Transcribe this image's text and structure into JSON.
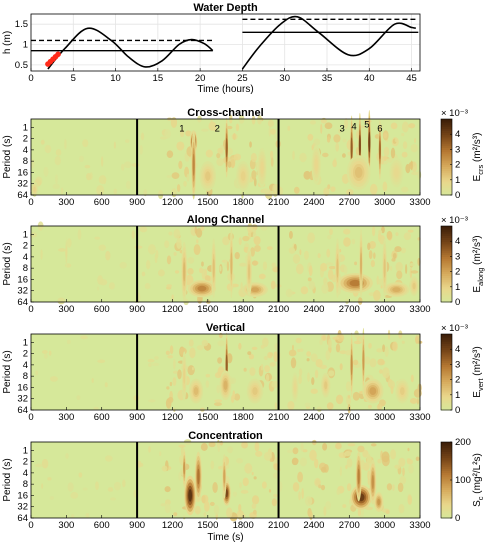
{
  "chart_data": [
    {
      "type": "line",
      "title": "Water Depth",
      "xlabel": "Time (hours)",
      "ylabel": "h (m)",
      "xlim": [
        0,
        46
      ],
      "ylim": [
        0.35,
        1.75
      ],
      "xticks": [
        "0",
        "5",
        "10",
        "15",
        "20",
        "25",
        "30",
        "35",
        "40",
        "45"
      ],
      "yticks": [
        "0.5",
        "1",
        "1.5"
      ],
      "grid": true,
      "series": [
        {
          "role": "water depth, deployment 1",
          "x": [
            2.0,
            4.0,
            6.7,
            9.5,
            11.5,
            13.5,
            15.5,
            17.5,
            19.0,
            20.5,
            21.5
          ],
          "y": [
            0.4,
            0.9,
            1.4,
            1.1,
            0.7,
            0.45,
            0.6,
            1.0,
            1.12,
            1.02,
            0.85
          ]
        },
        {
          "role": "water depth, deployment 2",
          "x": [
            25.0,
            27.0,
            29.5,
            31.5,
            34.0,
            37.5,
            40.0,
            43.0,
            45.0,
            45.5
          ],
          "y": [
            0.4,
            0.95,
            1.5,
            1.68,
            1.3,
            0.75,
            0.9,
            1.5,
            1.42,
            1.4
          ]
        },
        {
          "role": "solid horizontal reference, deployment 1",
          "x": [
            0,
            21.5
          ],
          "y": [
            0.85,
            0.85
          ]
        },
        {
          "role": "dashed horizontal reference, deployment 1",
          "x": [
            0,
            21.5
          ],
          "y": [
            1.1,
            1.1
          ]
        },
        {
          "role": "solid horizontal reference, deployment 2",
          "x": [
            25.0,
            45.8
          ],
          "y": [
            1.3,
            1.3
          ]
        },
        {
          "role": "dashed horizontal reference, deployment 2",
          "x": [
            25.0,
            45.8
          ],
          "y": [
            1.62,
            1.62
          ]
        },
        {
          "role": "red highlighted markers",
          "color": "#ff2a1a",
          "x": [
            2.0,
            2.3,
            2.6,
            2.9,
            3.2
          ],
          "y": [
            0.52,
            0.58,
            0.64,
            0.7,
            0.76
          ]
        }
      ]
    },
    {
      "type": "heatmap",
      "title": "Cross-channel",
      "ylabel": "Period (s)",
      "xlim": [
        0,
        3300
      ],
      "xticks": [
        "0",
        "300",
        "600",
        "900",
        "1200",
        "1500",
        "1800",
        "2100",
        "2400",
        "2700",
        "3000",
        "3300"
      ],
      "yticks": [
        "1",
        "2",
        "4",
        "8",
        "16",
        "32",
        "64"
      ],
      "vlines": [
        900,
        2100
      ],
      "colorbar": {
        "label": "E",
        "label_sub": "crs",
        "label_units": "(m²/s³)",
        "exponent": "× 10⁻³",
        "ticks": [
          "0",
          "1",
          "2",
          "3",
          "4"
        ],
        "max": 5
      },
      "annotations": [
        {
          "text": "1",
          "x": 1280,
          "y": 1
        },
        {
          "text": "2",
          "x": 1580,
          "y": 1
        },
        {
          "text": "3",
          "x": 2640,
          "y": 1
        },
        {
          "text": "4",
          "x": 2740,
          "y": 0.9
        },
        {
          "text": "5",
          "x": 2850,
          "y": 0.8
        },
        {
          "text": "6",
          "x": 2960,
          "y": 1
        }
      ],
      "features": [
        {
          "x": 1380,
          "period": 2.5,
          "value": 4.6,
          "sx": 30,
          "sy": 0.45
        },
        {
          "x": 1380,
          "period": 10,
          "value": 2.6,
          "sx": 20,
          "sy": 1.4
        },
        {
          "x": 1660,
          "period": 3.5,
          "value": 3.3,
          "sx": 14,
          "sy": 1.2
        },
        {
          "x": 1500,
          "period": 20,
          "value": 1.2,
          "sx": 70,
          "sy": 0.6
        },
        {
          "x": 1800,
          "period": 20,
          "value": 1.0,
          "sx": 60,
          "sy": 0.6
        },
        {
          "x": 1960,
          "period": 12,
          "value": 0.9,
          "sx": 40,
          "sy": 0.8
        },
        {
          "x": 2720,
          "period": 3.5,
          "value": 3.4,
          "sx": 12,
          "sy": 1.3
        },
        {
          "x": 2790,
          "period": 3.0,
          "value": 3.8,
          "sx": 12,
          "sy": 1.3
        },
        {
          "x": 2870,
          "period": 2.5,
          "value": 4.0,
          "sx": 12,
          "sy": 1.3
        },
        {
          "x": 2960,
          "period": 4,
          "value": 3.1,
          "sx": 12,
          "sy": 1.2
        },
        {
          "x": 2780,
          "period": 16,
          "value": 1.4,
          "sx": 100,
          "sy": 0.7
        },
        {
          "x": 2420,
          "period": 10,
          "value": 0.9,
          "sx": 40,
          "sy": 0.8
        },
        {
          "x": 3100,
          "period": 16,
          "value": 0.8,
          "sx": 60,
          "sy": 0.6
        },
        {
          "x": 30,
          "period": 45,
          "value": 1.0,
          "sx": 30,
          "sy": 0.3
        }
      ]
    },
    {
      "type": "heatmap",
      "title": "Along Channel",
      "ylabel": "Period (s)",
      "xlim": [
        0,
        3300
      ],
      "xticks": [
        "0",
        "300",
        "600",
        "900",
        "1200",
        "1500",
        "1800",
        "2100",
        "2400",
        "2700",
        "3000",
        "3300"
      ],
      "yticks": [
        "1",
        "2",
        "4",
        "8",
        "16",
        "32",
        "64"
      ],
      "vlines": [
        900,
        2100
      ],
      "colorbar": {
        "label": "E",
        "label_sub": "along",
        "label_units": "(m²/s³)",
        "exponent": "× 10⁻³",
        "ticks": [
          "0",
          "1",
          "2",
          "3",
          "4"
        ],
        "max": 5
      },
      "features": [
        {
          "x": 1450,
          "period": 28,
          "value": 2.6,
          "sx": 120,
          "sy": 0.35
        },
        {
          "x": 1900,
          "period": 30,
          "value": 2.0,
          "sx": 110,
          "sy": 0.3
        },
        {
          "x": 1300,
          "period": 10,
          "value": 1.6,
          "sx": 25,
          "sy": 1.2
        },
        {
          "x": 1550,
          "period": 8,
          "value": 1.4,
          "sx": 20,
          "sy": 1.2
        },
        {
          "x": 1700,
          "period": 6,
          "value": 1.6,
          "sx": 15,
          "sy": 1.4
        },
        {
          "x": 1850,
          "period": 10,
          "value": 1.3,
          "sx": 25,
          "sy": 1.0
        },
        {
          "x": 2750,
          "period": 20,
          "value": 2.8,
          "sx": 150,
          "sy": 0.4
        },
        {
          "x": 3100,
          "period": 30,
          "value": 1.8,
          "sx": 110,
          "sy": 0.3
        },
        {
          "x": 2600,
          "period": 8,
          "value": 1.4,
          "sx": 20,
          "sy": 1.2
        },
        {
          "x": 2800,
          "period": 6,
          "value": 1.7,
          "sx": 15,
          "sy": 1.4
        },
        {
          "x": 3000,
          "period": 8,
          "value": 1.3,
          "sx": 20,
          "sy": 1.2
        },
        {
          "x": 3250,
          "period": 24,
          "value": 1.2,
          "sx": 40,
          "sy": 0.4
        },
        {
          "x": 300,
          "period": 3,
          "value": 0.6,
          "sx": 5,
          "sy": 0.6
        }
      ]
    },
    {
      "type": "heatmap",
      "title": "Vertical",
      "ylabel": "Period (s)",
      "xlim": [
        0,
        3300
      ],
      "xticks": [
        "0",
        "300",
        "600",
        "900",
        "1200",
        "1500",
        "1800",
        "2100",
        "2400",
        "2700",
        "3000",
        "3300"
      ],
      "yticks": [
        "1",
        "2",
        "4",
        "8",
        "16",
        "32",
        "64"
      ],
      "vlines": [
        900,
        2100
      ],
      "colorbar": {
        "label": "E",
        "label_sub": "vert",
        "label_units": "(m²/s³)",
        "exponent": "× 10⁻³",
        "ticks": [
          "0",
          "1",
          "2",
          "3",
          "4"
        ],
        "max": 5
      },
      "features": [
        {
          "x": 1660,
          "period": 4,
          "value": 3.4,
          "sx": 12,
          "sy": 1.3
        },
        {
          "x": 1400,
          "period": 20,
          "value": 1.5,
          "sx": 60,
          "sy": 0.5
        },
        {
          "x": 1650,
          "period": 14,
          "value": 1.7,
          "sx": 50,
          "sy": 0.6
        },
        {
          "x": 1900,
          "period": 20,
          "value": 1.2,
          "sx": 70,
          "sy": 0.5
        },
        {
          "x": 1300,
          "period": 8,
          "value": 1.0,
          "sx": 20,
          "sy": 1.0
        },
        {
          "x": 2720,
          "period": 4,
          "value": 2.4,
          "sx": 12,
          "sy": 1.3
        },
        {
          "x": 2820,
          "period": 3,
          "value": 2.2,
          "sx": 12,
          "sy": 1.3
        },
        {
          "x": 2900,
          "period": 20,
          "value": 2.0,
          "sx": 90,
          "sy": 0.5
        },
        {
          "x": 2500,
          "period": 14,
          "value": 1.2,
          "sx": 40,
          "sy": 0.5
        },
        {
          "x": 3150,
          "period": 20,
          "value": 1.1,
          "sx": 60,
          "sy": 0.5
        },
        {
          "x": 2240,
          "period": 16,
          "value": 0.8,
          "sx": 30,
          "sy": 0.6
        }
      ]
    },
    {
      "type": "heatmap",
      "title": "Concentration",
      "xlabel": "Time (s)",
      "ylabel": "Period (s)",
      "xlim": [
        0,
        3300
      ],
      "xticks": [
        "0",
        "300",
        "600",
        "900",
        "1200",
        "1500",
        "1800",
        "2100",
        "2400",
        "2700",
        "3000",
        "3300"
      ],
      "yticks": [
        "1",
        "2",
        "4",
        "8",
        "16",
        "32",
        "64"
      ],
      "vlines": [
        900,
        2100
      ],
      "colorbar": {
        "label": "S",
        "label_sub": "c",
        "label_units": "(mg²/L²s)",
        "exponent": "",
        "ticks": [
          "0",
          "100",
          "200"
        ],
        "tick_values": [
          0,
          100,
          200
        ],
        "max": 200
      },
      "features": [
        {
          "x": 1350,
          "period": 16,
          "value": 175,
          "sx": 50,
          "sy": 0.8
        },
        {
          "x": 1420,
          "period": 5,
          "value": 120,
          "sx": 30,
          "sy": 1.0
        },
        {
          "x": 1300,
          "period": 3,
          "value": 90,
          "sx": 15,
          "sy": 0.8
        },
        {
          "x": 1660,
          "period": 14,
          "value": 155,
          "sx": 35,
          "sy": 0.5
        },
        {
          "x": 1640,
          "period": 5,
          "value": 80,
          "sx": 18,
          "sy": 0.9
        },
        {
          "x": 2800,
          "period": 18,
          "value": 165,
          "sx": 90,
          "sy": 0.5
        },
        {
          "x": 2780,
          "period": 5,
          "value": 110,
          "sx": 25,
          "sy": 1.0
        },
        {
          "x": 2900,
          "period": 7,
          "value": 95,
          "sx": 30,
          "sy": 0.9
        },
        {
          "x": 2950,
          "period": 24,
          "value": 90,
          "sx": 40,
          "sy": 0.4
        }
      ]
    }
  ]
}
